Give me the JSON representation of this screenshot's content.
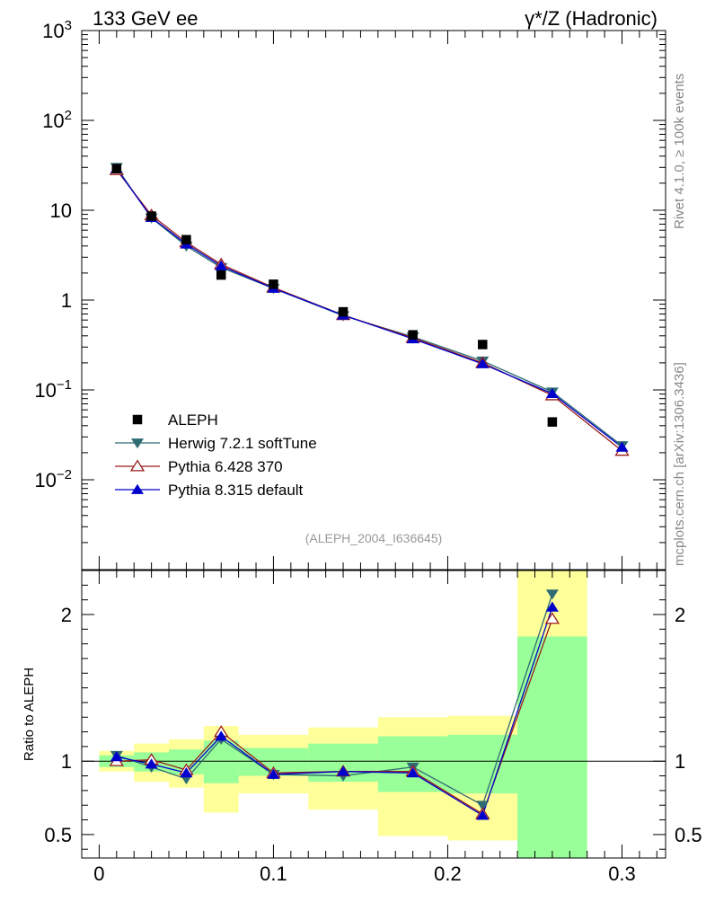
{
  "header": {
    "left": "133 GeV ee",
    "right": "γ*/Z (Hadronic)"
  },
  "side_labels": {
    "rivet": "Rivet 4.1.0, ≥ 100k events",
    "mcplots": "mcplots.cern.ch [arXiv:1306.3436]"
  },
  "analysis_tag": "(ALEPH_2004_I636645)",
  "chart_data": [
    {
      "type": "scatter",
      "panel": "main",
      "yscale": "log",
      "xlim": [
        -0.01,
        0.325
      ],
      "ylim": [
        0.001,
        1000
      ],
      "ytick_labels": [
        {
          "value": 1000,
          "base": "10",
          "exp": "3"
        },
        {
          "value": 100,
          "base": "10",
          "exp": "2"
        },
        {
          "value": 10,
          "base": "10",
          "exp": ""
        },
        {
          "value": 1,
          "base": "1",
          "exp": ""
        },
        {
          "value": 0.1,
          "base": "10",
          "exp": "−1"
        },
        {
          "value": 0.01,
          "base": "10",
          "exp": "−2"
        }
      ],
      "legend": [
        "ALEPH",
        "Herwig 7.2.1 softTune",
        "Pythia 6.428 370",
        "Pythia 8.315 default"
      ],
      "legend_position": "bottom-left",
      "data": {
        "name": "ALEPH",
        "x": [
          0.01,
          0.03,
          0.05,
          0.07,
          0.1,
          0.14,
          0.18,
          0.22,
          0.26
        ],
        "y": [
          29,
          8.6,
          4.7,
          1.9,
          1.5,
          0.74,
          0.41,
          0.32,
          0.044
        ]
      },
      "series": [
        {
          "name": "Herwig 7.2.1 softTune",
          "color": "#2f6b73",
          "marker": "triangle-down",
          "x": [
            0.01,
            0.03,
            0.05,
            0.07,
            0.1,
            0.14,
            0.18,
            0.22,
            0.26,
            0.3
          ],
          "y": [
            30,
            8.2,
            4.0,
            2.3,
            1.35,
            0.67,
            0.39,
            0.21,
            0.095,
            0.024
          ]
        },
        {
          "name": "Pythia 6.428 370",
          "color": "#9b1c1c",
          "marker": "triangle-open",
          "x": [
            0.01,
            0.03,
            0.05,
            0.07,
            0.1,
            0.14,
            0.18,
            0.22,
            0.26,
            0.3
          ],
          "y": [
            28,
            8.8,
            4.4,
            2.5,
            1.38,
            0.68,
            0.38,
            0.2,
            0.087,
            0.021
          ]
        },
        {
          "name": "Pythia 8.315 default",
          "color": "#0000cc",
          "marker": "triangle-up",
          "x": [
            0.01,
            0.03,
            0.05,
            0.07,
            0.1,
            0.14,
            0.18,
            0.22,
            0.26,
            0.3
          ],
          "y": [
            29,
            8.3,
            4.2,
            2.4,
            1.35,
            0.68,
            0.37,
            0.195,
            0.091,
            0.023
          ]
        }
      ]
    },
    {
      "type": "line",
      "panel": "ratio",
      "ylabel": "Ratio to ALEPH",
      "xlim": [
        -0.01,
        0.325
      ],
      "ylim": [
        0.34,
        2.3
      ],
      "ytick_labels": [
        "0.5",
        "1",
        "2"
      ],
      "yticks": [
        0.5,
        1,
        2
      ],
      "xtick_labels": [
        "0",
        "0.1",
        "0.2",
        "0.3"
      ],
      "xticks": [
        0,
        0.1,
        0.2,
        0.3
      ],
      "reference": 1,
      "bands": {
        "edges": [
          0,
          0.02,
          0.04,
          0.06,
          0.08,
          0.12,
          0.16,
          0.2,
          0.24,
          0.28
        ],
        "yellow_low": [
          0.93,
          0.86,
          0.82,
          0.65,
          0.78,
          0.67,
          0.49,
          0.46,
          0.34
        ],
        "yellow_high": [
          1.07,
          1.12,
          1.15,
          1.24,
          1.18,
          1.23,
          1.3,
          1.31,
          2.5
        ],
        "green_low": [
          0.96,
          0.93,
          0.91,
          0.85,
          0.9,
          0.86,
          0.79,
          0.78,
          0.34
        ],
        "green_high": [
          1.04,
          1.06,
          1.08,
          1.14,
          1.09,
          1.12,
          1.17,
          1.18,
          1.85
        ]
      },
      "series": [
        {
          "name": "Herwig 7.2.1 softTune",
          "color": "#2f6b73",
          "marker": "triangle-down",
          "x": [
            0.01,
            0.03,
            0.05,
            0.07,
            0.1,
            0.14,
            0.18,
            0.22,
            0.26
          ],
          "y": [
            1.04,
            0.96,
            0.88,
            1.15,
            0.91,
            0.9,
            0.96,
            0.7,
            2.14
          ]
        },
        {
          "name": "Pythia 6.428 370",
          "color": "#9b1c1c",
          "marker": "triangle-open",
          "x": [
            0.01,
            0.03,
            0.05,
            0.07,
            0.1,
            0.14,
            0.18,
            0.22,
            0.26
          ],
          "y": [
            1.0,
            1.01,
            0.94,
            1.2,
            0.92,
            0.93,
            0.93,
            0.64,
            1.97
          ]
        },
        {
          "name": "Pythia 8.315 default",
          "color": "#0000cc",
          "marker": "triangle-up",
          "x": [
            0.01,
            0.03,
            0.05,
            0.07,
            0.1,
            0.14,
            0.18,
            0.22,
            0.26
          ],
          "y": [
            1.03,
            0.98,
            0.92,
            1.17,
            0.91,
            0.93,
            0.92,
            0.63,
            2.05
          ]
        }
      ]
    }
  ]
}
